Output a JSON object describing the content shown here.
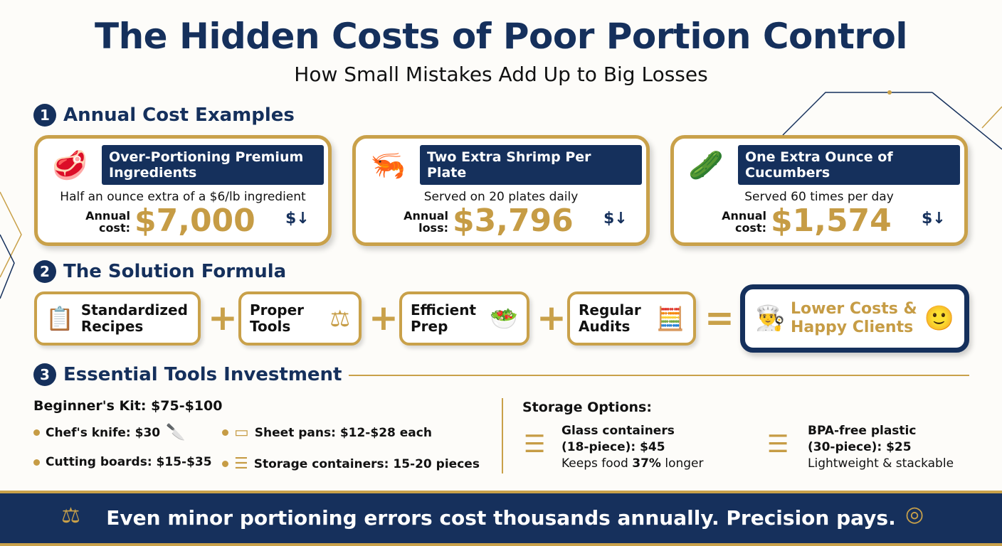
{
  "title": "The Hidden Costs of Poor Portion Control",
  "subtitle": "How Small Mistakes Add Up to Big Losses",
  "colors": {
    "navy": "#15305c",
    "gold": "#c69c45"
  },
  "sections": [
    {
      "number": "1",
      "title": "Annual Cost Examples"
    },
    {
      "number": "2",
      "title": "The Solution Formula"
    },
    {
      "number": "3",
      "title": "Essential Tools Investment"
    }
  ],
  "cost_cards": [
    {
      "icon": "steak-icon",
      "title": "Over-Portioning Premium Ingredients",
      "description": "Half an ounce extra of a $6/lb ingredient",
      "label": "Annual cost:",
      "value": "$7,000"
    },
    {
      "icon": "shrimp-icon",
      "title": "Two Extra Shrimp Per Plate",
      "description": "Served on 20 plates daily",
      "label": "Annual loss:",
      "value": "$3,796"
    },
    {
      "icon": "cucumber-icon",
      "title": "One Extra Ounce of Cucumbers",
      "description": "Served 60 times per day",
      "label": "Annual cost:",
      "value": "$1,574"
    }
  ],
  "formula": {
    "steps": [
      {
        "label": "Standardized Recipes",
        "icon": "recipe-icon"
      },
      {
        "label": "Proper Tools",
        "icon": "scale-icon"
      },
      {
        "label": "Efficient Prep",
        "icon": "prep-bowl-icon"
      },
      {
        "label": "Regular Audits",
        "icon": "checklist-calculator-icon"
      }
    ],
    "plus": "+",
    "equals": "=",
    "result": "Lower Costs & Happy Clients"
  },
  "tools": {
    "kit_title": "Beginner's Kit: $75-$100",
    "items": [
      "Chef's knife: $30",
      "Sheet pans: $12-$28 each",
      "Cutting boards: $15-$35",
      "Storage containers: 15-20 pieces"
    ],
    "storage_title": "Storage Options:",
    "storage": [
      {
        "line1": "Glass containers",
        "line2": "(18-piece): $45",
        "line3_pre": "Keeps food ",
        "line3_bold": "37%",
        "line3_post": " longer"
      },
      {
        "line1": "BPA-free plastic",
        "line2": "(30-piece): $25",
        "line3": "Lightweight & stackable"
      }
    ]
  },
  "footer": "Even minor portioning errors cost thousands annually. Precision pays."
}
